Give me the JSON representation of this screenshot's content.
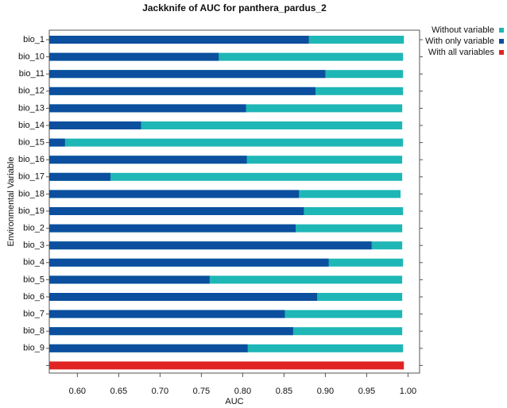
{
  "chart_data": {
    "type": "jackknife-bar",
    "title": "Jackknife of AUC for panthera_pardus_2",
    "x_label": "AUC",
    "y_label": "Environmental Variable",
    "categories": [
      "bio_1",
      "bio_10",
      "bio_11",
      "bio_12",
      "bio_13",
      "bio_14",
      "bio_15",
      "bio_16",
      "bio_17",
      "bio_18",
      "bio_19",
      "bio_2",
      "bio_3",
      "bio_4",
      "bio_5",
      "bio_6",
      "bio_7",
      "bio_8",
      "bio_9",
      null
    ],
    "series": [
      {
        "name": "Without variable",
        "color": "#1fb6b6",
        "values": [
          0.995,
          0.994,
          0.994,
          0.994,
          0.993,
          0.993,
          0.994,
          0.993,
          0.993,
          0.991,
          0.994,
          0.993,
          0.993,
          0.994,
          0.993,
          0.993,
          0.993,
          0.993,
          0.994,
          null
        ]
      },
      {
        "name": "With only variable",
        "color": "#0b4f9e",
        "values": [
          0.88,
          0.771,
          0.9,
          0.888,
          0.804,
          0.677,
          0.585,
          0.805,
          0.64,
          0.868,
          0.874,
          0.864,
          0.956,
          0.904,
          0.76,
          0.89,
          0.851,
          0.861,
          0.806,
          null
        ]
      },
      {
        "name": "With all variables",
        "color": "#e02424",
        "values": [
          null,
          null,
          null,
          null,
          null,
          null,
          null,
          null,
          null,
          null,
          null,
          null,
          null,
          null,
          null,
          null,
          null,
          null,
          null,
          0.995
        ]
      }
    ],
    "xlim": [
      0.566,
      1.014
    ],
    "xticks": [
      {
        "value": 0.6,
        "label": "0.60"
      },
      0.65,
      {
        "value": 0.7,
        "label": "0.70"
      },
      0.75,
      {
        "value": 0.8,
        "label": "0.80"
      },
      0.85,
      {
        "value": 0.9,
        "label": "0.90"
      },
      0.95,
      {
        "value": 1,
        "label": "1.00"
      }
    ],
    "legend": "top-right"
  }
}
